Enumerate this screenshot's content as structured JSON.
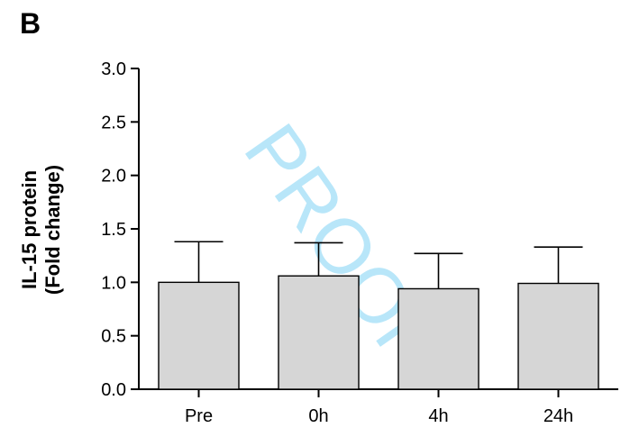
{
  "panel_label": "B",
  "watermark": "PROOF",
  "colors": {
    "bar_fill": "#d6d6d6",
    "bar_stroke": "#000000",
    "axis": "#000000",
    "watermark": "#7fd3f5"
  },
  "chart_data": {
    "type": "bar",
    "categories": [
      "Pre",
      "0h",
      "4h",
      "24h"
    ],
    "values": [
      1.0,
      1.06,
      0.94,
      0.99
    ],
    "error_upper": [
      1.38,
      1.37,
      1.27,
      1.33
    ],
    "ylabel_line1": "IL-15 protein",
    "ylabel_line2": "(Fold change)",
    "xlabel": "",
    "ylim": [
      0,
      3.0
    ],
    "yticks": [
      "0.0",
      "0.5",
      "1.0",
      "1.5",
      "2.0",
      "2.5",
      "3.0"
    ],
    "grid": false,
    "legend": "none"
  }
}
